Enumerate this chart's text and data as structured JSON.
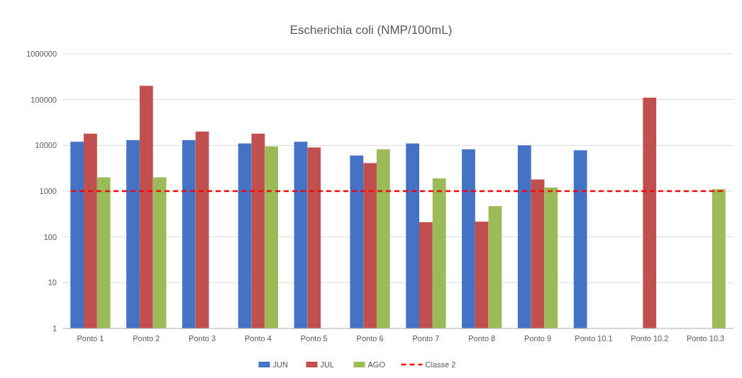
{
  "chart_data": {
    "type": "bar",
    "title": "Escherichia coli (NMP/100mL)",
    "log": true,
    "grid": "y",
    "legend": "bottom",
    "categories": [
      "Ponto 1",
      "Ponto 2",
      "Ponto 3",
      "Ponto 4",
      "Ponto 5",
      "Ponto 6",
      "Ponto 7",
      "Ponto 8",
      "Ponto 9",
      "Ponto 10.1",
      "Ponto 10.2",
      "Ponto 10.3"
    ],
    "ylim": [
      1,
      1000000
    ],
    "yticks": [
      1,
      10,
      100,
      1000,
      10000,
      100000,
      1000000
    ],
    "series": [
      {
        "name": "JUN",
        "color": "#4472c4",
        "values": [
          12000,
          13000,
          13000,
          11000,
          12000,
          6000,
          11000,
          8200,
          10000,
          7800,
          null,
          null
        ]
      },
      {
        "name": "JUL",
        "color": "#c0504d",
        "values": [
          18000,
          200000,
          20000,
          18000,
          9000,
          4100,
          210,
          215,
          1800,
          null,
          110000,
          null
        ]
      },
      {
        "name": "AGO",
        "color": "#9bbb59",
        "values": [
          2000,
          2000,
          null,
          9500,
          null,
          8200,
          1900,
          470,
          1200,
          null,
          null,
          1100
        ]
      }
    ],
    "ref_lines": [
      {
        "axis": "y",
        "value": 1000,
        "label": "Classe 2",
        "color": "#ff0000",
        "line_style": "dashed"
      }
    ]
  }
}
